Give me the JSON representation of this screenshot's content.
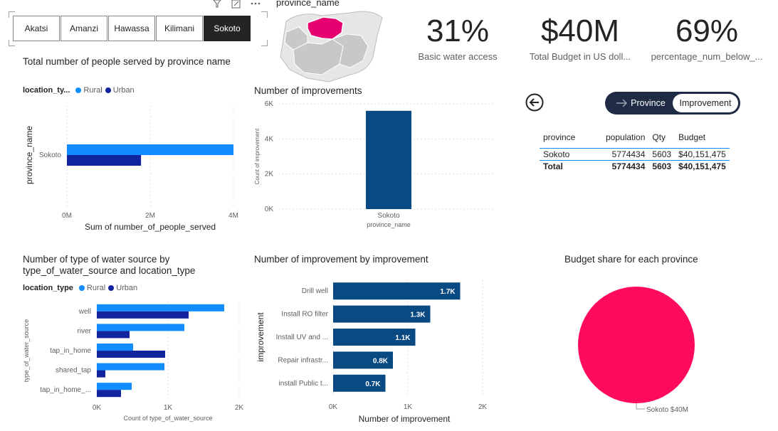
{
  "slicer": {
    "items": [
      "Akatsi",
      "Amanzi",
      "Hawassa",
      "Kilimani",
      "Sokoto"
    ],
    "selected": "Sokoto"
  },
  "map": {
    "title": "province_name",
    "highlight_color": "#e6006f"
  },
  "kpis": [
    {
      "value": "31%",
      "label": "Basic water access"
    },
    {
      "value": "$40M",
      "label": "Total Budget in US doll..."
    },
    {
      "value": "69%",
      "label": "percentage_num_below_..."
    }
  ],
  "toggle": {
    "left_label": "Province",
    "right_label": "Improvement"
  },
  "table": {
    "headers": [
      "province",
      "population",
      "Qty",
      "Budget"
    ],
    "rows": [
      [
        "Sokoto",
        "5774434",
        "5603",
        "$40,151,475"
      ]
    ],
    "total": [
      "Total",
      "5774434",
      "5603",
      "$40,151,475"
    ]
  },
  "colors": {
    "rural": "#118dff",
    "urban": "#12239e",
    "dark_bar": "#0a4a82",
    "pie": "#ff0a5c"
  },
  "chart_data": [
    {
      "type": "bar",
      "orientation": "horizontal",
      "title": "Total number of people served by province name",
      "legend_title": "location_ty...",
      "categories": [
        "Sokoto"
      ],
      "series": [
        {
          "name": "Rural",
          "values": [
            4000000
          ]
        },
        {
          "name": "Urban",
          "values": [
            1780000
          ]
        }
      ],
      "xlabel": "Sum of number_of_people_served",
      "ylabel": "province_name",
      "xlim": [
        0,
        4000000
      ],
      "xticks": [
        "0M",
        "2M",
        "4M"
      ]
    },
    {
      "type": "bar",
      "title": "Number of improvements",
      "categories": [
        "Sokoto"
      ],
      "values": [
        5603
      ],
      "xlabel": "province_name",
      "ylabel": "Count of improvement",
      "ylim": [
        0,
        6000
      ],
      "yticks": [
        "0K",
        "2K",
        "4K",
        "6K"
      ]
    },
    {
      "type": "bar",
      "orientation": "horizontal",
      "title": "Number of type of water source by type_of_water_source and location_type",
      "legend_title": "location_type",
      "categories": [
        "well",
        "river",
        "tap_in_home",
        "shared_tap",
        "tap_in_home_..."
      ],
      "series": [
        {
          "name": "Rural",
          "values": [
            1790,
            1230,
            510,
            950,
            490
          ]
        },
        {
          "name": "Urban",
          "values": [
            1290,
            460,
            960,
            120,
            340
          ]
        }
      ],
      "xlabel": "Count of type_of_water_source",
      "ylabel": "type_of_water_source",
      "xlim": [
        0,
        2000
      ],
      "xticks": [
        "0K",
        "1K",
        "2K"
      ]
    },
    {
      "type": "bar",
      "orientation": "horizontal",
      "title": "Number of improvement by improvement",
      "categories": [
        "Drill well",
        "Install RO filter",
        "Install UV and ...",
        "Repair infrastr...",
        "install Public t..."
      ],
      "values": [
        1700,
        1300,
        1100,
        800,
        700
      ],
      "data_labels": [
        "1.7K",
        "1.3K",
        "1.1K",
        "0.8K",
        "0.7K"
      ],
      "xlabel": "Number of improvement",
      "ylabel": "improvement",
      "xlim": [
        0,
        2000
      ],
      "xticks": [
        "0K",
        "1K",
        "2K"
      ]
    },
    {
      "type": "pie",
      "title": "Budget share for each province",
      "slices": [
        {
          "label": "Sokoto",
          "value": 40,
          "data_label": "Sokoto $40M"
        }
      ]
    }
  ]
}
